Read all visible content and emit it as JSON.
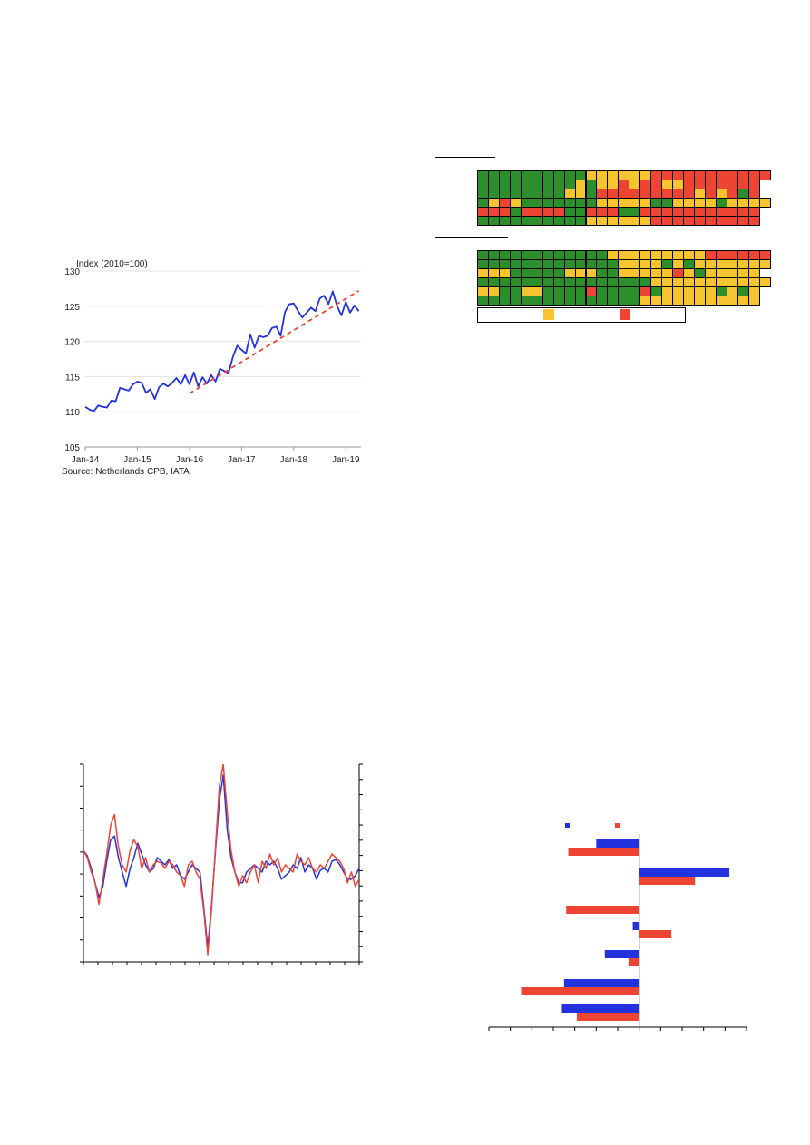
{
  "chart_data": [
    {
      "type": "line",
      "ylabel": "Index (2010=100)",
      "source": "Source: Netherlands CPB, IATA",
      "ylim": [
        105,
        130
      ],
      "yticks": [
        "105",
        "110",
        "115",
        "120",
        "125",
        "130"
      ],
      "xticks": [
        "Jan-14",
        "Jan-15",
        "Jan-16",
        "Jan-17",
        "Jan-18",
        "Jan-19"
      ],
      "grid": true,
      "series": [
        {
          "color": "#2233dd",
          "style": "solid",
          "x_start": "Jan-14",
          "values": [
            110.7,
            110.3,
            110.1,
            110.9,
            110.7,
            110.6,
            111.6,
            111.5,
            113.4,
            113.2,
            113.0,
            113.9,
            114.3,
            114.1,
            112.7,
            113.2,
            111.8,
            113.5,
            114.0,
            113.6,
            114.1,
            114.8,
            113.9,
            115.2,
            113.9,
            115.6,
            113.6,
            114.9,
            114.0,
            115.2,
            114.3,
            116.1,
            115.8,
            115.5,
            117.8,
            119.4,
            118.8,
            118.3,
            121.0,
            119.1,
            120.8,
            120.6,
            120.8,
            121.9,
            122.1,
            120.8,
            124.2,
            125.3,
            125.4,
            124.3,
            123.4,
            124.1,
            124.8,
            124.3,
            126.1,
            126.5,
            125.3,
            127.1,
            125.0,
            123.7,
            125.6,
            124.1,
            125.1,
            124.3
          ]
        },
        {
          "color": "#ee4433",
          "style": "dashed",
          "x": [
            "Jan-16",
            "Apr-19"
          ],
          "values": [
            112.6,
            127.2
          ]
        }
      ]
    },
    {
      "type": "heatmap",
      "colors": {
        "green": "#2c8f2c",
        "yellow": "#f6c431",
        "red": "#ee4433"
      },
      "groups": [
        {
          "rows": [
            "GGGGGGGGGGYYYYYYRRRRRRRRRRR",
            "GGGGGGGGGYGYYRYRRYYRRRRRRR",
            "GGGGGGGGYYGRRRRRRRRRYRYRGR",
            "GYRYGGGGGGGYYYYYGGYYYYGYYYY",
            "RRRGRRRRGGRRRGGRRRRRRRRRRR",
            "GGGGGGGGGGYYYYYYRRRRRRRRRR"
          ]
        },
        {
          "rows": [
            "GGGGGGGGGGGGYYYYYYYYYRRRRRR",
            "GGGGGGGGGGGGGYYYYGYGYYYYYYY",
            "YYYGGGGGYYYGGYYYYYRYGYYYYY",
            "GGGGGGGGGGGGGGGGYYYYYYYYYYY",
            "YYGGYYGGGGRGGGGRGYYYYYGYGY",
            "GGGGGGGGGGGGGGGYYYYYYYYYYY"
          ]
        }
      ]
    },
    {
      "type": "line",
      "series": [
        {
          "color": "#2233dd",
          "values": [
            0.6,
            0.45,
            0.1,
            -0.3,
            -0.7,
            -0.4,
            0.3,
            0.9,
            1.0,
            0.4,
            0.0,
            -0.4,
            0.1,
            0.4,
            0.8,
            0.5,
            0.2,
            0.0,
            0.1,
            0.4,
            0.3,
            0.2,
            0.35,
            0.1,
            0.2,
            -0.1,
            -0.2,
            0.0,
            0.2,
            0.1,
            0.0,
            -1.0,
            -2.1,
            -0.9,
            0.6,
            2.0,
            2.7,
            1.2,
            0.4,
            0.0,
            -0.3,
            -0.3,
            0.0,
            0.1,
            0.2,
            0.1,
            0.0,
            0.3,
            0.2,
            0.3,
            0.1,
            -0.2,
            -0.1,
            0.0,
            0.2,
            0.1,
            0.4,
            0.0,
            0.2,
            0.1,
            -0.2,
            0.05,
            0.1,
            0.0,
            0.3,
            0.35,
            0.2,
            0.0,
            -0.2,
            -0.2,
            -0.1,
            0.1
          ]
        },
        {
          "color": "#ee4433",
          "values": [
            0.6,
            0.4,
            0.0,
            -0.3,
            -0.9,
            -0.2,
            0.5,
            1.3,
            1.6,
            0.7,
            0.2,
            0.0,
            0.6,
            0.9,
            0.7,
            0.1,
            0.4,
            0.0,
            0.2,
            0.3,
            0.25,
            0.1,
            0.3,
            0.2,
            0.0,
            -0.1,
            -0.4,
            0.2,
            0.3,
            0.0,
            -0.2,
            -1.1,
            -2.3,
            -1.0,
            0.7,
            2.4,
            3.0,
            1.7,
            0.6,
            0.0,
            -0.4,
            -0.1,
            -0.3,
            0.0,
            0.2,
            -0.3,
            0.3,
            0.1,
            0.5,
            0.2,
            0.4,
            0.0,
            0.2,
            0.1,
            0.0,
            0.5,
            0.3,
            0.2,
            0.4,
            0.1,
            0.0,
            0.2,
            0.1,
            0.3,
            0.5,
            0.4,
            0.3,
            0.1,
            -0.3,
            0.0,
            -0.4,
            -0.2
          ]
        }
      ]
    },
    {
      "type": "bar",
      "orientation": "horizontal",
      "xlim": [
        -7,
        5
      ],
      "series": [
        {
          "color": "#2233dd",
          "values": [
            -2.0,
            4.2,
            0,
            -0.3,
            -1.6,
            -3.5,
            -3.6
          ]
        },
        {
          "color": "#ee4433",
          "values": [
            -3.3,
            2.6,
            -3.4,
            1.5,
            -0.5,
            -5.5,
            -2.9
          ]
        }
      ]
    }
  ]
}
